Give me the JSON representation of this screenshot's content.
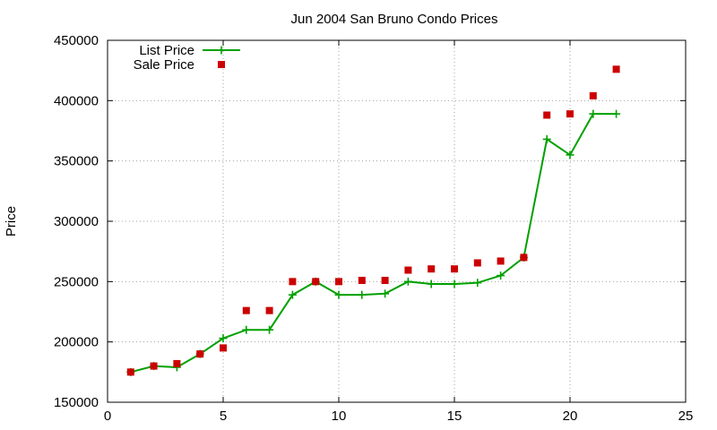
{
  "chart_data": {
    "type": "line",
    "title": "Jun 2004 San Bruno Condo Prices",
    "xlabel": "",
    "ylabel": "Price",
    "xlim": [
      0,
      25
    ],
    "ylim": [
      150000,
      450000
    ],
    "x_ticks": [
      0,
      5,
      10,
      15,
      20,
      25
    ],
    "y_ticks": [
      150000,
      200000,
      250000,
      300000,
      350000,
      400000,
      450000
    ],
    "x_tick_labels": [
      "0",
      "5",
      "10",
      "15",
      "20",
      "25"
    ],
    "y_tick_labels": [
      "150000",
      "200000",
      "250000",
      "300000",
      "350000",
      "400000",
      "450000"
    ],
    "grid": true,
    "legend_position": "top-left",
    "series": [
      {
        "name": "List Price",
        "style": "line-with-plus-markers",
        "color": "#00a000",
        "x": [
          1,
          2,
          3,
          4,
          5,
          6,
          7,
          8,
          9,
          10,
          11,
          12,
          13,
          14,
          15,
          16,
          17,
          18,
          19,
          20,
          21,
          22
        ],
        "y": [
          175000,
          180000,
          179000,
          190000,
          203000,
          210000,
          210000,
          239000,
          250000,
          239000,
          239000,
          240000,
          250000,
          248000,
          248000,
          249000,
          255000,
          270000,
          368000,
          355000,
          389000,
          389000
        ]
      },
      {
        "name": "Sale Price",
        "style": "square-markers",
        "color": "#cc0000",
        "x": [
          1,
          2,
          3,
          4,
          5,
          6,
          7,
          8,
          9,
          10,
          11,
          12,
          13,
          14,
          15,
          16,
          17,
          18,
          19,
          20,
          21,
          22
        ],
        "y": [
          175000,
          180000,
          182000,
          190000,
          195000,
          226000,
          226000,
          250000,
          250000,
          250000,
          251000,
          251000,
          259500,
          260500,
          260500,
          265500,
          267000,
          270000,
          388000,
          389000,
          404000,
          426000
        ]
      }
    ]
  }
}
